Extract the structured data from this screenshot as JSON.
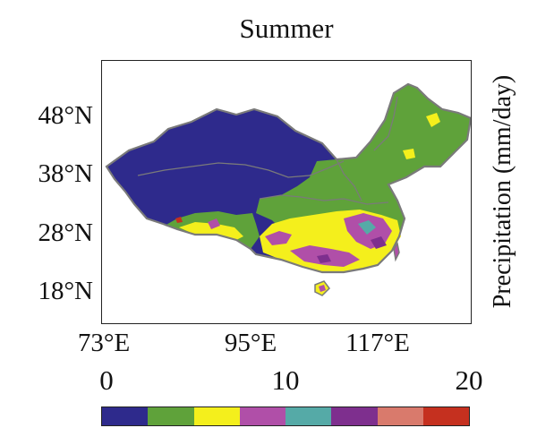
{
  "title": "Summer",
  "colorbar_label": "Precipitation (mm/day)",
  "lat_labels": [
    "48°N",
    "38°N",
    "28°N",
    "18°N"
  ],
  "lon_labels": [
    "73°E",
    "95°E",
    "117°E"
  ],
  "colorbar_ticks": [
    "0",
    "10",
    "20"
  ],
  "colorbar_colors": [
    "#2e2a8c",
    "#5fa23a",
    "#f4ef1c",
    "#b04fa8",
    "#55aaa7",
    "#7e2f8e",
    "#d97a6c",
    "#c5301f"
  ],
  "region_colors": {
    "dry": "#2e2a8c",
    "low": "#5fa23a",
    "mid": "#f4ef1c",
    "high": "#b04fa8",
    "teal": "#55aaa7",
    "purple": "#7e2f8e",
    "salmon": "#d97a6c",
    "red": "#c5301f",
    "border": "#7a7a7a"
  }
}
